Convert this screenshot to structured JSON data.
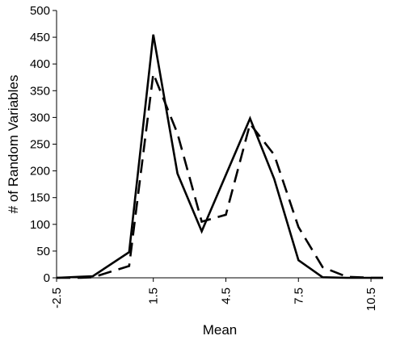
{
  "chart_data": {
    "type": "line",
    "title": "",
    "xlabel": "Mean",
    "ylabel": "# of Random Variables",
    "xlim": [
      -2.5,
      11.0
    ],
    "ylim": [
      0,
      500
    ],
    "x_ticks": [
      -2.5,
      1.5,
      4.5,
      7.5,
      10.5
    ],
    "x_tick_labels": [
      "-2.5",
      "1.5",
      "4.5",
      "7.5",
      "10.5"
    ],
    "y_ticks": [
      0,
      50,
      100,
      150,
      200,
      250,
      300,
      350,
      400,
      450,
      500
    ],
    "grid": false,
    "legend": "none",
    "series": [
      {
        "style": "solid",
        "color": "#000000",
        "x": [
          -2.5,
          -1.5,
          -1.0,
          0.5,
          1.5,
          2.5,
          3.5,
          5.5,
          6.5,
          7.5,
          8.5,
          9.5,
          10.5,
          11.0
        ],
        "y": [
          0,
          2,
          3,
          48,
          455,
          195,
          87,
          298,
          185,
          33,
          1,
          0,
          0,
          0
        ]
      },
      {
        "style": "dashed",
        "color": "#000000",
        "x": [
          -2.5,
          -1.5,
          -1.0,
          0.5,
          1.5,
          2.5,
          3.5,
          4.5,
          5.5,
          6.5,
          7.5,
          8.5,
          9.5,
          10.5,
          11.0
        ],
        "y": [
          0,
          0,
          1,
          22,
          382,
          270,
          105,
          118,
          288,
          230,
          95,
          20,
          2,
          0,
          0
        ]
      }
    ]
  }
}
